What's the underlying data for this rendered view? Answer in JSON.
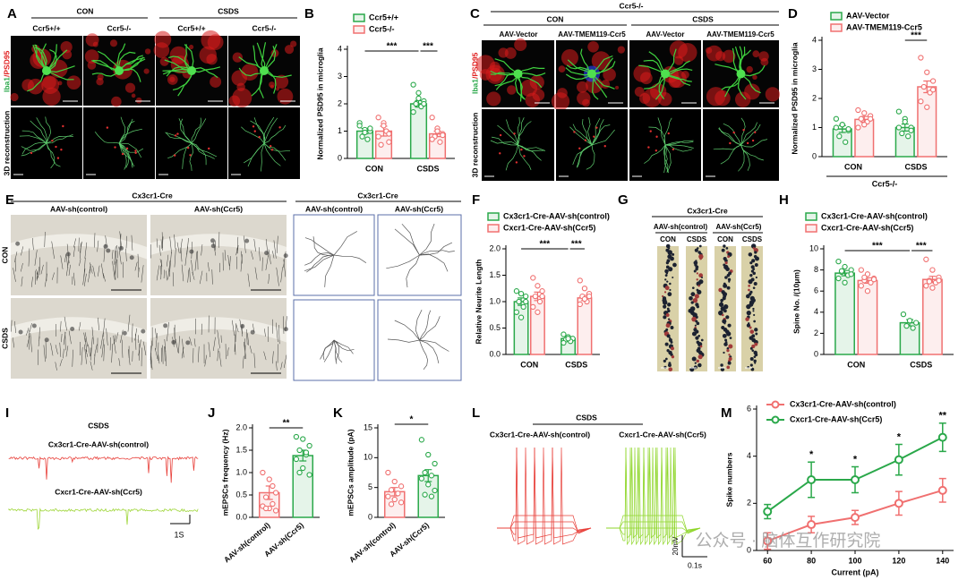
{
  "figure": {
    "letters": [
      "A",
      "B",
      "C",
      "D",
      "E",
      "F",
      "G",
      "H",
      "I",
      "J",
      "K",
      "L",
      "M"
    ],
    "A": {
      "groups": [
        "CON",
        "CSDS"
      ],
      "columns": [
        "Ccr5+/+",
        "Ccr5-/-",
        "Ccr5+/+",
        "Ccr5-/-"
      ],
      "stain": [
        "Iba1",
        "/PSD95"
      ],
      "row2": "3D reconstruction"
    },
    "C": {
      "top": "Ccr5-/-",
      "groups": [
        "CON",
        "CSDS"
      ],
      "columns": [
        "AAV-Vector",
        "AAV-TMEM119-Ccr5",
        "AAV-Vector",
        "AAV-TMEM119-Ccr5"
      ],
      "stain": [
        "Iba1",
        "/PSD95"
      ],
      "row2": "3D reconstruction"
    },
    "E": {
      "title": "Cx3cr1-Cre",
      "columns": [
        "AAV-sh(control)",
        "AAV-sh(Ccr5)"
      ],
      "rows": [
        "CON",
        "CSDS"
      ],
      "tracing_title": "Cx3cr1-Cre",
      "tracing_columns": [
        "AAV-sh(control)",
        "AAV-sh(Ccr5)"
      ]
    },
    "G": {
      "title": "Cx3cr1-Cre",
      "groups": [
        "AAV-sh(control)",
        "AAV-sh(Ccr5)"
      ],
      "columns": [
        "CON",
        "CSDS",
        "CON",
        "CSDS"
      ]
    },
    "I": {
      "title": "CSDS",
      "traces": [
        "Cx3cr1-Cre-AAV-sh(control)",
        "Cxcr1-Cre-AAV-sh(Ccr5)"
      ],
      "scale": "1S"
    },
    "L": {
      "title": "CSDS",
      "traces": [
        "Cx3cr1-Cre-AAV-sh(control)",
        "Cxcr1-Cre-AAV-sh(Ccr5)"
      ],
      "scale_v": "20mV",
      "scale_t": "0.1s"
    },
    "watermark": "公众号 · 脑体互作研究院"
  },
  "chart_data": [
    {
      "type": "bar",
      "ylabel": "Normalized PSD95 in microglia",
      "categories": [
        "CON",
        "CSDS"
      ],
      "ylim": [
        0,
        4
      ],
      "yticks": [
        0,
        1,
        2,
        3,
        4
      ],
      "legend": "top",
      "series": [
        {
          "name": "Ccr5+/+",
          "color": "#2aa84a",
          "values": [
            1.0,
            2.0
          ],
          "errors": [
            0.1,
            0.12
          ],
          "points": [
            [
              1.3,
              1.05,
              1.0,
              0.8,
              0.7,
              1.2,
              0.95,
              1.1
            ],
            [
              2.7,
              2.4,
              2.1,
              2.0,
              1.9,
              1.7,
              2.2,
              2.0
            ]
          ]
        },
        {
          "name": "Ccr5-/-",
          "color": "#f07070",
          "values": [
            1.0,
            0.9
          ],
          "errors": [
            0.18,
            0.1
          ],
          "points": [
            [
              1.5,
              1.3,
              0.6,
              0.5,
              1.0,
              0.8,
              1.2,
              0.9
            ],
            [
              1.5,
              1.1,
              0.9,
              0.8,
              0.6,
              0.7,
              1.0,
              0.85
            ]
          ]
        }
      ],
      "annotations": [
        "***",
        "***"
      ]
    },
    {
      "type": "bar",
      "ylabel": "Normalized PSD95 in microglia",
      "categories": [
        "CON",
        "CSDS"
      ],
      "ylim": [
        0,
        4
      ],
      "yticks": [
        0,
        1,
        2,
        3,
        4
      ],
      "legend": "top",
      "xnote": "Ccr5-/-",
      "series": [
        {
          "name": "AAV-Vector",
          "color": "#2aa84a",
          "values": [
            0.95,
            1.0
          ],
          "errors": [
            0.12,
            0.12
          ],
          "points": [
            [
              1.3,
              1.1,
              0.9,
              0.7,
              0.5,
              1.0,
              1.1,
              0.95
            ],
            [
              1.55,
              1.3,
              1.0,
              0.8,
              0.7,
              1.0,
              1.2,
              0.9
            ]
          ]
        },
        {
          "name": "AAV-TMEM119-Ccr5",
          "color": "#f07070",
          "values": [
            1.28,
            2.4
          ],
          "errors": [
            0.1,
            0.2
          ],
          "points": [
            [
              1.6,
              1.5,
              1.4,
              1.3,
              1.2,
              1.0,
              1.1,
              1.3
            ],
            [
              3.4,
              2.9,
              2.6,
              2.4,
              2.2,
              1.9,
              1.7,
              2.3
            ]
          ]
        }
      ],
      "annotations": [
        "***"
      ]
    },
    {
      "type": "bar",
      "ylabel": "Relative Neurite Length",
      "categories": [
        "CON",
        "CSDS"
      ],
      "ylim": [
        0,
        2
      ],
      "yticks": [
        {
          "value": 0,
          "label": "0.0"
        },
        0.5,
        {
          "value": 1,
          "label": "1.0"
        },
        1.5,
        {
          "value": 2,
          "label": "2.0"
        }
      ],
      "legend": "top",
      "series": [
        {
          "name": "Cx3cr1-Cre-AAV-sh(control)",
          "color": "#2aa84a",
          "values": [
            1.0,
            0.3
          ],
          "errors": [
            0.07,
            0.03
          ],
          "points": [
            [
              1.2,
              1.15,
              1.1,
              1.0,
              0.9,
              0.8,
              0.7,
              1.0
            ],
            [
              0.38,
              0.33,
              0.3,
              0.28,
              0.25,
              0.22,
              0.3
            ]
          ]
        },
        {
          "name": "Cxcr1-Cre-AAV-sh(Ccr5)",
          "color": "#f07070",
          "values": [
            1.1,
            1.07
          ],
          "errors": [
            0.08,
            0.05
          ],
          "points": [
            [
              1.45,
              1.3,
              1.2,
              1.1,
              1.0,
              0.9,
              0.8,
              1.1
            ],
            [
              1.4,
              1.25,
              1.15,
              1.1,
              1.0,
              0.95,
              1.05,
              1.1
            ]
          ]
        }
      ],
      "annotations": [
        "***",
        "***"
      ]
    },
    {
      "type": "bar",
      "ylabel": "Spine No. /(10μm)",
      "categories": [
        "CON",
        "CSDS"
      ],
      "ylim": [
        0,
        10
      ],
      "yticks": [
        0,
        2,
        4,
        6,
        8,
        10
      ],
      "legend": "top",
      "series": [
        {
          "name": "Cx3cr1-Cre-AAV-sh(control)",
          "color": "#2aa84a",
          "values": [
            7.7,
            3.0
          ],
          "errors": [
            0.25,
            0.3
          ],
          "points": [
            [
              8.8,
              8.3,
              8.0,
              7.8,
              7.5,
              7.2,
              6.8,
              7.6,
              7.9
            ],
            [
              3.8,
              3.2,
              3.0,
              2.7,
              2.5
            ]
          ]
        },
        {
          "name": "Cxcr1-Cre-AAV-sh(Ccr5)",
          "color": "#f07070",
          "values": [
            7.0,
            7.1
          ],
          "errors": [
            0.25,
            0.3
          ],
          "points": [
            [
              8.0,
              7.6,
              7.2,
              7.0,
              6.8,
              6.5,
              6.0,
              7.1,
              7.3
            ],
            [
              9.0,
              8.0,
              7.3,
              7.0,
              6.8,
              6.5,
              6.3,
              7.0,
              6.9
            ]
          ]
        }
      ],
      "annotations": [
        "***",
        "***"
      ]
    },
    {
      "type": "bar",
      "ylabel": "mEPSCs frequency (Hz)",
      "categories": [
        "AAV-sh(control)",
        "AAV-sh(Ccr5)"
      ],
      "ylim": [
        0,
        2
      ],
      "yticks": [
        {
          "value": 0,
          "label": "0.0"
        },
        0.5,
        {
          "value": 1,
          "label": "1.0"
        },
        1.5,
        {
          "value": 2,
          "label": "2.0"
        }
      ],
      "series": [
        {
          "colors": [
            "#f07070",
            "#2aa84a"
          ],
          "values": [
            0.55,
            1.38
          ],
          "errors": [
            0.15,
            0.12
          ],
          "points": [
            [
              1.0,
              0.85,
              0.55,
              0.45,
              0.3,
              0.25,
              0.2,
              0.15,
              0.2,
              0.7
            ],
            [
              1.8,
              1.75,
              1.6,
              1.5,
              1.4,
              1.3,
              1.1,
              0.95,
              1.0,
              1.45
            ]
          ]
        }
      ],
      "annotations": [
        "**"
      ]
    },
    {
      "type": "bar",
      "ylabel": "mEPSCs amplitude (pA)",
      "categories": [
        "AAV-sh(control)",
        "AAV-sh(Ccr5)"
      ],
      "ylim": [
        0,
        15
      ],
      "yticks": [
        0,
        5,
        10,
        15
      ],
      "series": [
        {
          "colors": [
            "#f07070",
            "#2aa84a"
          ],
          "values": [
            4.3,
            7.0
          ],
          "errors": [
            0.7,
            1.0
          ],
          "points": [
            [
              7.5,
              6.0,
              5.2,
              4.6,
              4.0,
              3.5,
              3.0,
              2.5,
              2.2
            ],
            [
              13.0,
              10.5,
              9.0,
              7.5,
              7.0,
              6.5,
              5.5,
              4.5,
              3.8,
              3.5
            ]
          ]
        }
      ],
      "annotations": [
        "*"
      ]
    },
    {
      "type": "line",
      "xlabel": "Current (pA)",
      "ylabel": "Spike numbers",
      "x": [
        60,
        80,
        100,
        120,
        140
      ],
      "xlim": [
        55,
        145
      ],
      "xticks": [
        60,
        80,
        100,
        120,
        140
      ],
      "ylim": [
        0,
        6
      ],
      "yticks": [
        0,
        2,
        4,
        6
      ],
      "legend": "upper left",
      "series": [
        {
          "name": "Cx3cr1-Cre-AAV-sh(control)",
          "color": "#f07070",
          "values": [
            0.4,
            1.1,
            1.4,
            2.0,
            2.55
          ],
          "errors": [
            0.35,
            0.35,
            0.3,
            0.5,
            0.5
          ]
        },
        {
          "name": "Cxcr1-Cre-AAV-sh(Ccr5)",
          "color": "#2aa84a",
          "values": [
            1.65,
            3.0,
            3.0,
            3.85,
            4.8
          ],
          "errors": [
            0.3,
            0.75,
            0.55,
            0.65,
            0.6
          ]
        }
      ],
      "annotations": [
        {
          "x": 80,
          "text": "*"
        },
        {
          "x": 100,
          "text": "*"
        },
        {
          "x": 120,
          "text": "*"
        },
        {
          "x": 140,
          "text": "**"
        }
      ]
    }
  ]
}
